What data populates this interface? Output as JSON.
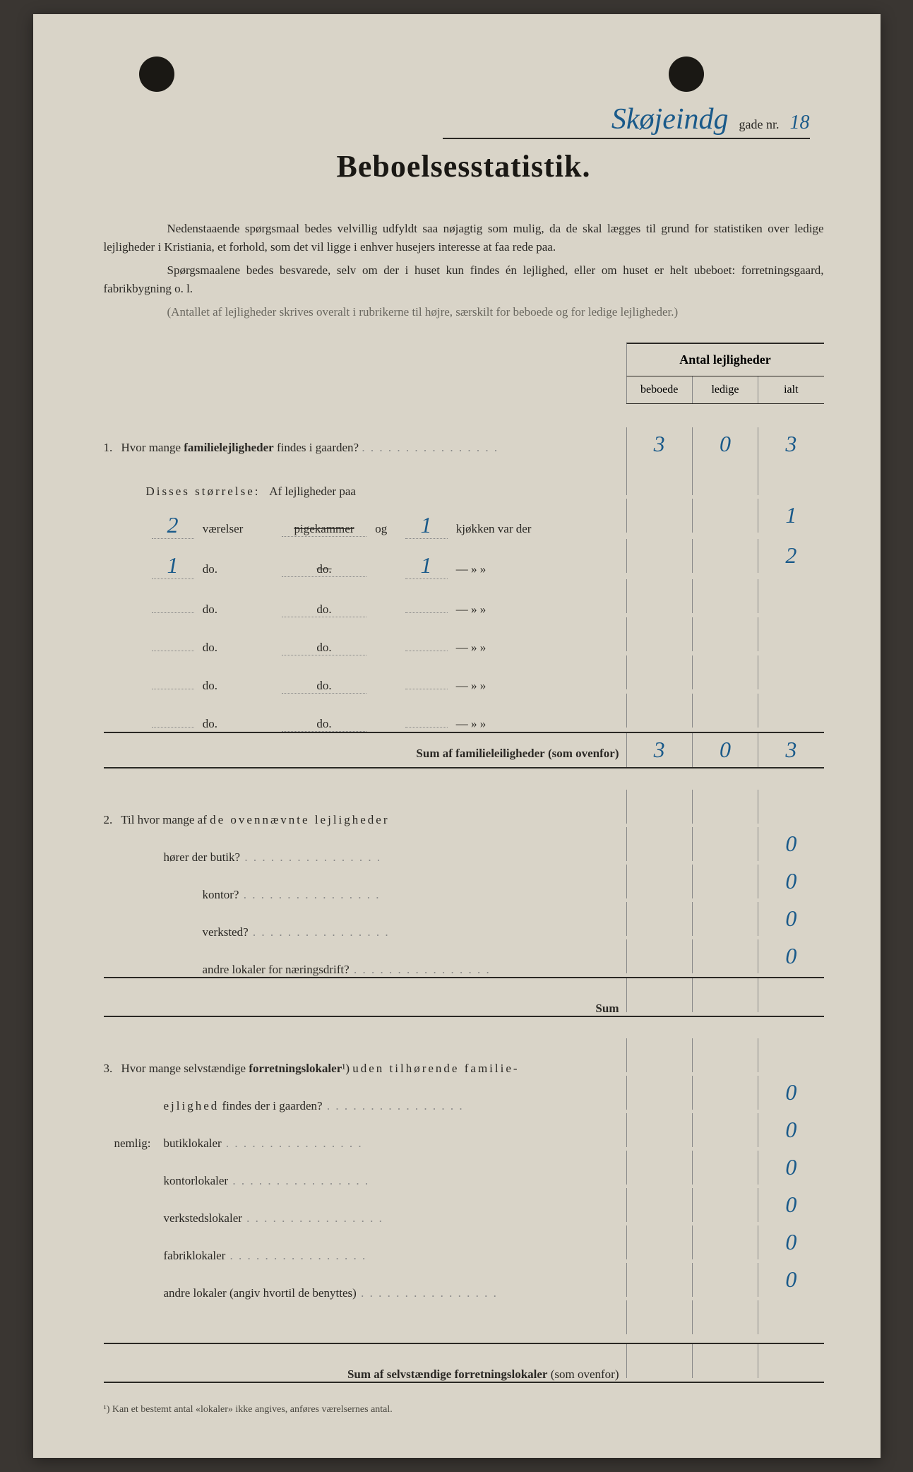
{
  "colors": {
    "paper": "#d9d4c8",
    "ink": "#2a2824",
    "handwriting": "#1a5a8a",
    "background": "#3a3632"
  },
  "header": {
    "street_name": "Skøjeindg",
    "gade_label": "gade nr.",
    "street_number": "18"
  },
  "title": "Beboelsesstatistik.",
  "intro": {
    "p1": "Nedenstaaende spørgsmaal bedes velvillig udfyldt saa nøjagtig som mulig, da de skal lægges til grund for statistiken over ledige lejligheder i Kristiania, et forhold, som det vil ligge i enhver husejers interesse at faa rede paa.",
    "p2": "Spørgsmaalene bedes besvarede, selv om der i huset kun findes én lejlighed, eller om huset er helt ubeboet: forretningsgaard, fabrikbygning o. l.",
    "p3": "(Antallet af lejligheder skrives overalt i rubrikerne til højre, særskilt for beboede og for ledige lejligheder.)"
  },
  "table_header": {
    "title": "Antal lejligheder",
    "col1": "beboede",
    "col2": "ledige",
    "col3": "ialt"
  },
  "q1": {
    "num": "1.",
    "text": "Hvor mange familielejligheder findes i gaarden?",
    "beboede": "3",
    "ledige": "0",
    "ialt": "3",
    "subtitle": "Disses størrelse:   Af lejligheder paa",
    "rows": [
      {
        "vaer": "2",
        "label1": "værelser",
        "mid": "pigekammer",
        "mid_strike": true,
        "og": "og",
        "kj": "1",
        "label2": "kjøkken var der",
        "ialt": "1"
      },
      {
        "vaer": "1",
        "label1": "do.",
        "mid": "do.",
        "mid_strike": true,
        "og": "",
        "kj": "1",
        "label2": "—     »     »",
        "ialt": "2"
      },
      {
        "vaer": "",
        "label1": "do.",
        "mid": "do.",
        "mid_strike": false,
        "og": "",
        "kj": "",
        "label2": "—     »     »",
        "ialt": ""
      },
      {
        "vaer": "",
        "label1": "do.",
        "mid": "do.",
        "mid_strike": false,
        "og": "",
        "kj": "",
        "label2": "—     »     »",
        "ialt": ""
      },
      {
        "vaer": "",
        "label1": "do.",
        "mid": "do.",
        "mid_strike": false,
        "og": "",
        "kj": "",
        "label2": "—     »     »",
        "ialt": ""
      },
      {
        "vaer": "",
        "label1": "do.",
        "mid": "do.",
        "mid_strike": false,
        "og": "",
        "kj": "",
        "label2": "—     »     »",
        "ialt": ""
      }
    ],
    "sum_label": "Sum af familieleiligheder (som ovenfor)",
    "sum_beboede": "3",
    "sum_ledige": "0",
    "sum_ialt": "3"
  },
  "q2": {
    "num": "2.",
    "text": "Til hvor mange af de ovennævnte lejligheder",
    "rows": [
      {
        "label": "hører der butik?",
        "val": "0"
      },
      {
        "label": "kontor?",
        "val": "0"
      },
      {
        "label": "verksted?",
        "val": "0"
      },
      {
        "label": "andre lokaler for næringsdrift?",
        "val": "0"
      }
    ],
    "sum_label": "Sum"
  },
  "q3": {
    "num": "3.",
    "text_a": "Hvor mange selvstændige forretningslokaler¹) uden tilhørende familie-",
    "text_b": "ejlighed findes der i gaarden?",
    "val": "0",
    "nemlig": "nemlig:",
    "rows": [
      {
        "label": "butiklokaler",
        "val": "0"
      },
      {
        "label": "kontorlokaler",
        "val": "0"
      },
      {
        "label": "verkstedslokaler",
        "val": "0"
      },
      {
        "label": "fabriklokaler",
        "val": "0"
      },
      {
        "label": "andre lokaler (angiv hvortil de benyttes)",
        "val": "0"
      }
    ],
    "sum_label": "Sum af selvstændige forretningslokaler (som ovenfor)"
  },
  "footnote": "¹)  Kan et bestemt antal «lokaler» ikke angives, anføres værelsernes antal."
}
